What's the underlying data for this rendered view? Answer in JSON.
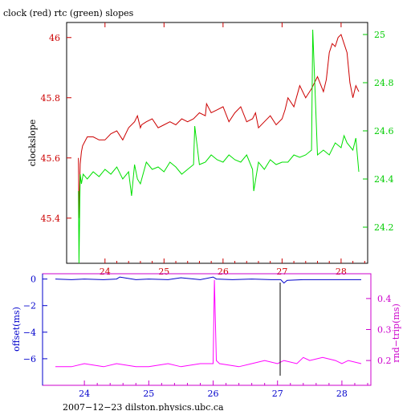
{
  "chart_data": [
    {
      "type": "line",
      "title": "clock (red) rtc (green) slopes",
      "ylabel": "clockslope",
      "xlabel": "",
      "xlim": [
        23.35,
        28.45
      ],
      "ylim_left": [
        45.25,
        46.05
      ],
      "ylim_right": [
        24.05,
        25.05
      ],
      "x_ticks": [
        "24",
        "25",
        "26",
        "27",
        "28"
      ],
      "y_ticks_left": [
        "45.4",
        "45.6",
        "45.8",
        "46"
      ],
      "y_ticks_right": [
        "24.2",
        "24.4",
        "24.6",
        "24.8",
        "25"
      ],
      "colors": {
        "clock": "#cc0000",
        "rtc": "#00e000",
        "axis_left": "#cc0000",
        "axis_right": "#00cc00",
        "frame": "#000000"
      },
      "series": [
        {
          "axis": "left",
          "x": [
            23.55,
            23.56,
            23.58,
            23.6,
            23.62,
            23.7,
            23.8,
            23.9,
            24.0,
            24.1,
            24.2,
            24.3,
            24.4,
            24.5,
            24.55,
            24.6,
            24.62,
            24.7,
            24.8,
            24.9,
            25.0,
            25.1,
            25.2,
            25.3,
            25.4,
            25.5,
            25.6,
            25.7,
            25.72,
            25.8,
            25.9,
            26.0,
            26.1,
            26.2,
            26.3,
            26.4,
            26.5,
            26.55,
            26.6,
            26.7,
            26.8,
            26.9,
            27.0,
            27.05,
            27.1,
            27.2,
            27.3,
            27.4,
            27.5,
            27.6,
            27.7,
            27.75,
            27.8,
            27.85,
            27.9,
            27.95,
            28.0,
            28.05,
            28.1,
            28.15,
            28.2,
            28.25,
            28.3
          ],
          "values": [
            45.6,
            45.4,
            45.58,
            45.62,
            45.64,
            45.67,
            45.67,
            45.66,
            45.66,
            45.68,
            45.69,
            45.66,
            45.7,
            45.72,
            45.74,
            45.7,
            45.71,
            45.72,
            45.73,
            45.7,
            45.71,
            45.72,
            45.71,
            45.73,
            45.72,
            45.73,
            45.75,
            45.74,
            45.78,
            45.75,
            45.76,
            45.77,
            45.72,
            45.75,
            45.77,
            45.72,
            45.73,
            45.75,
            45.7,
            45.72,
            45.74,
            45.71,
            45.73,
            45.76,
            45.8,
            45.77,
            45.84,
            45.8,
            45.83,
            45.87,
            45.82,
            45.86,
            45.95,
            45.98,
            45.97,
            46.0,
            46.01,
            45.98,
            45.95,
            45.85,
            45.8,
            45.84,
            45.82
          ]
        },
        {
          "axis": "right",
          "x": [
            23.55,
            23.56,
            23.58,
            23.6,
            23.63,
            23.7,
            23.8,
            23.9,
            24.0,
            24.1,
            24.2,
            24.3,
            24.4,
            24.45,
            24.5,
            24.55,
            24.6,
            24.7,
            24.8,
            24.9,
            25.0,
            25.1,
            25.2,
            25.3,
            25.4,
            25.5,
            25.52,
            25.6,
            25.7,
            25.8,
            25.9,
            26.0,
            26.1,
            26.2,
            26.3,
            26.4,
            26.5,
            26.52,
            26.6,
            26.7,
            26.8,
            26.9,
            27.0,
            27.1,
            27.2,
            27.3,
            27.4,
            27.5,
            27.52,
            27.6,
            27.7,
            27.8,
            27.9,
            28.0,
            28.05,
            28.1,
            28.2,
            28.25,
            28.3
          ],
          "values": [
            24.35,
            24.05,
            24.42,
            24.38,
            24.42,
            24.4,
            24.43,
            24.41,
            24.44,
            24.42,
            24.45,
            24.4,
            24.43,
            24.33,
            24.46,
            24.4,
            24.38,
            24.47,
            24.44,
            24.45,
            24.43,
            24.47,
            24.45,
            24.42,
            24.44,
            24.46,
            24.62,
            24.46,
            24.47,
            24.5,
            24.48,
            24.47,
            24.5,
            24.48,
            24.47,
            24.5,
            24.44,
            24.35,
            24.47,
            24.44,
            24.48,
            24.46,
            24.47,
            24.47,
            24.5,
            24.49,
            24.5,
            24.52,
            25.02,
            24.5,
            24.52,
            24.5,
            24.55,
            24.53,
            24.58,
            24.55,
            24.52,
            24.57,
            24.43
          ]
        }
      ]
    },
    {
      "type": "line",
      "title": "",
      "ylabel": "offset(ms)",
      "ylabel_right": "rnd−trip(ms)",
      "xlabel": "2007−12−23  dilston.physics.ubc.ca",
      "xlim": [
        23.35,
        28.45
      ],
      "ylim_left": [
        -8,
        0.4
      ],
      "ylim_right": [
        0.12,
        0.48
      ],
      "x_ticks": [
        "24",
        "25",
        "26",
        "27",
        "28"
      ],
      "y_ticks_left": [
        "0",
        "−2",
        "−4",
        "−6"
      ],
      "y_ticks_right": [
        "0.2",
        "0.3",
        "0.4"
      ],
      "colors": {
        "offset": "#0000cc",
        "rndtrip": "#ff00ff",
        "spike": "#000000",
        "axis_left": "#0000cc",
        "axis_right": "#cc00cc"
      },
      "series": [
        {
          "axis": "left",
          "x": [
            23.55,
            23.8,
            24.0,
            24.3,
            24.5,
            24.55,
            24.8,
            25.0,
            25.3,
            25.5,
            25.8,
            26.0,
            26.05,
            26.3,
            26.6,
            26.9,
            27.05,
            27.1,
            27.15,
            27.4,
            27.7,
            28.0,
            28.3
          ],
          "values": [
            0.0,
            -0.05,
            0.0,
            -0.05,
            0.0,
            0.15,
            -0.05,
            0.0,
            -0.05,
            0.1,
            -0.05,
            0.15,
            0.0,
            -0.05,
            0.0,
            -0.05,
            -0.05,
            -0.3,
            -0.1,
            -0.05,
            -0.05,
            -0.05,
            -0.05
          ]
        },
        {
          "axis": "right",
          "x": [
            23.55,
            23.8,
            24.0,
            24.3,
            24.5,
            24.8,
            25.0,
            25.3,
            25.5,
            25.8,
            26.0,
            26.02,
            26.05,
            26.1,
            26.4,
            26.6,
            26.8,
            27.0,
            27.1,
            27.3,
            27.4,
            27.5,
            27.7,
            27.9,
            28.0,
            28.1,
            28.3
          ],
          "values": [
            0.18,
            0.18,
            0.19,
            0.18,
            0.19,
            0.18,
            0.18,
            0.19,
            0.18,
            0.19,
            0.19,
            0.46,
            0.2,
            0.19,
            0.18,
            0.19,
            0.2,
            0.19,
            0.2,
            0.19,
            0.21,
            0.2,
            0.21,
            0.2,
            0.19,
            0.2,
            0.19
          ]
        }
      ]
    }
  ]
}
